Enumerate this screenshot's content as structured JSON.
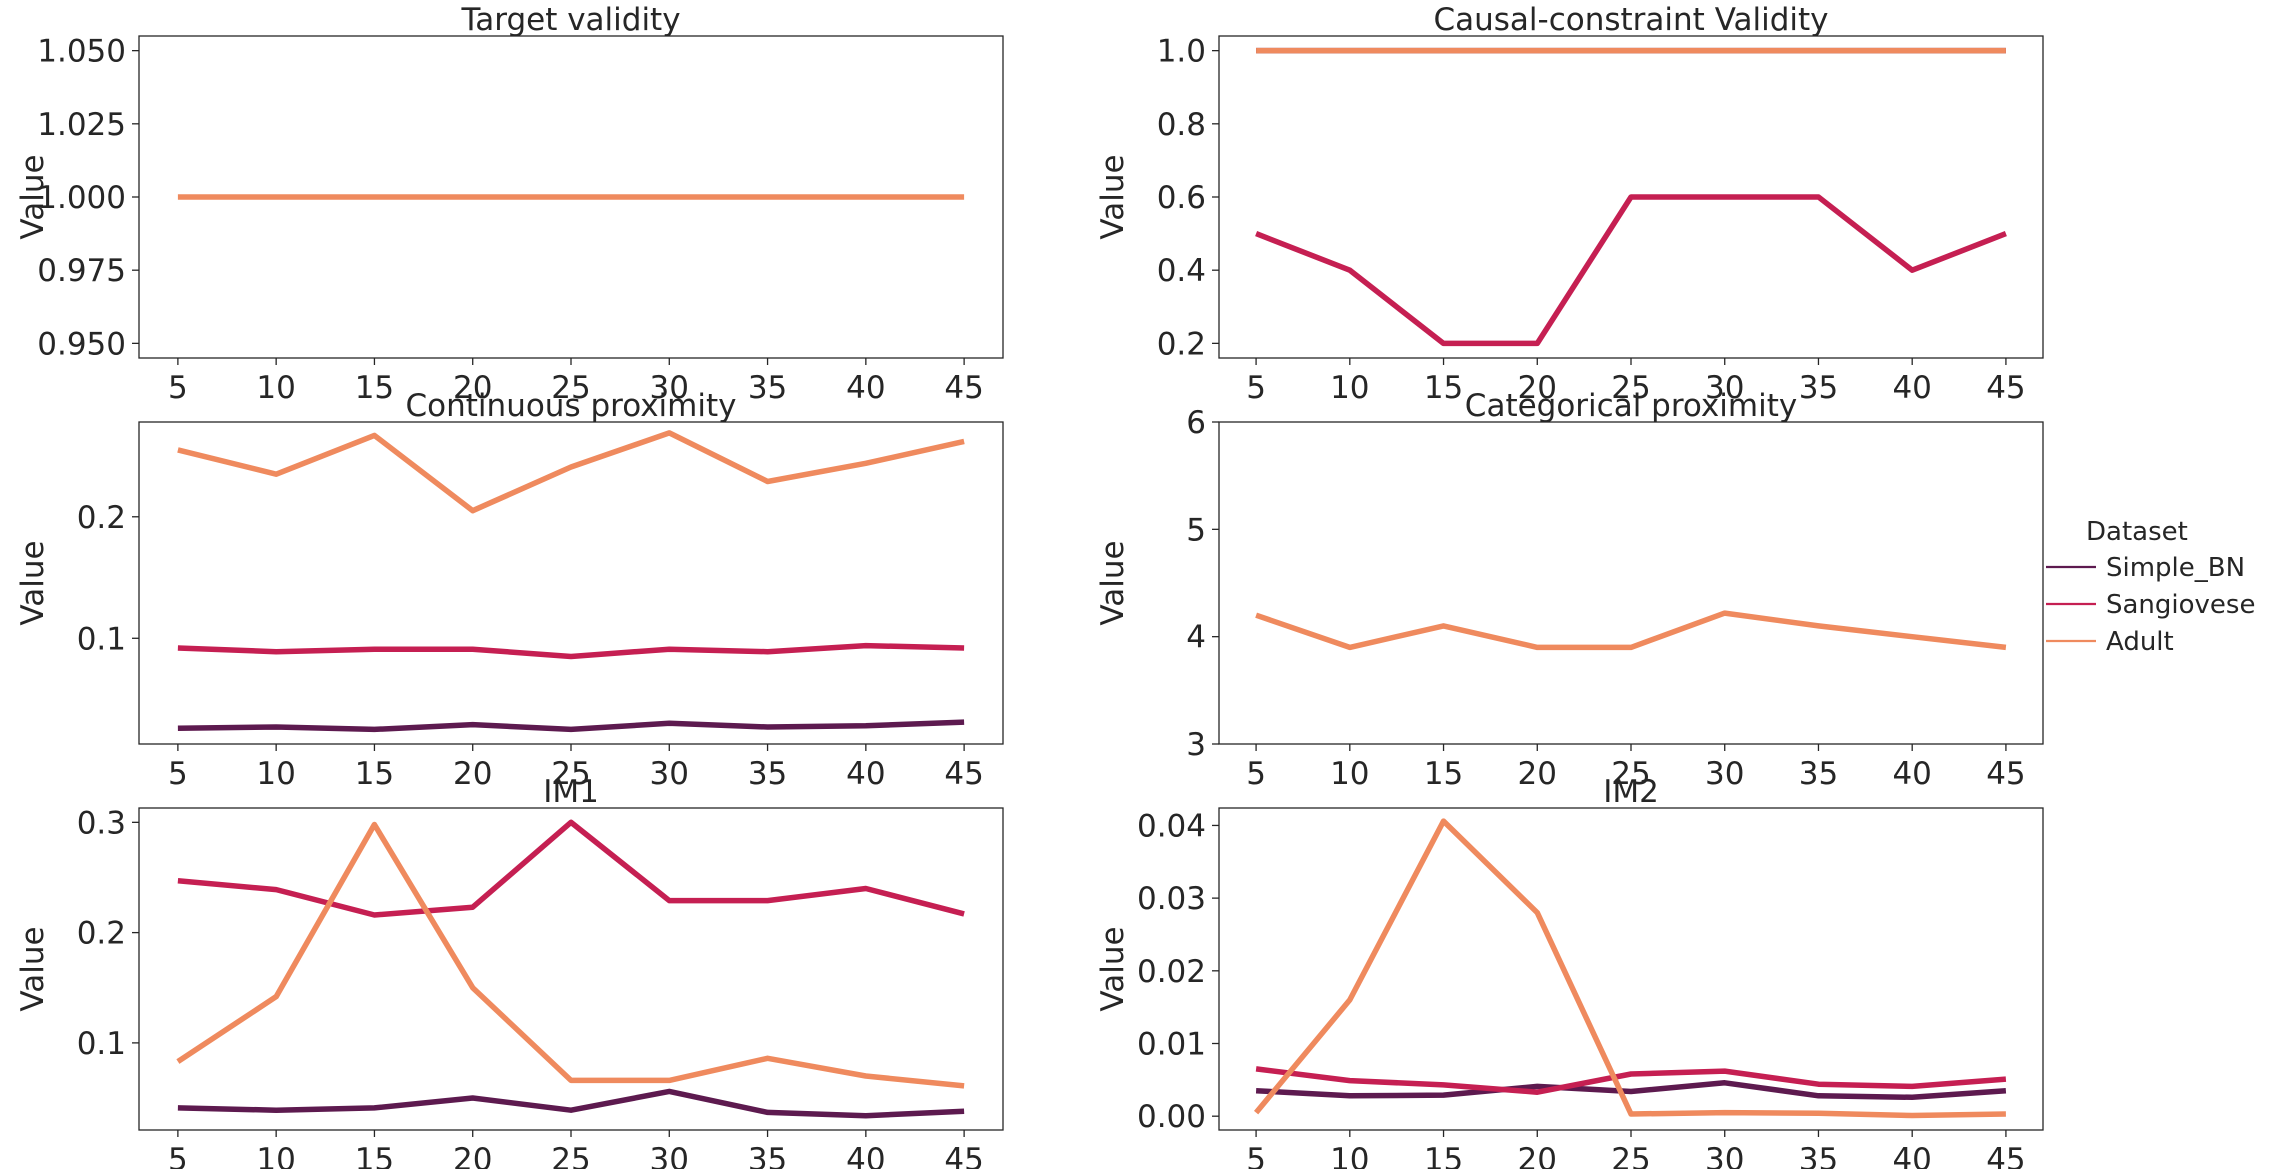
{
  "legend": {
    "title": "Dataset",
    "entries": [
      {
        "name": "Simple_BN",
        "color": "#5d1a4f"
      },
      {
        "name": "Sangiovese",
        "color": "#c51f52"
      },
      {
        "name": "Adult",
        "color": "#ef8a5e"
      }
    ]
  },
  "chart_data": [
    {
      "type": "line",
      "title": "Target validity",
      "ylabel": "Value",
      "x": [
        5,
        10,
        15,
        20,
        25,
        30,
        35,
        40,
        45
      ],
      "xticks": [
        5,
        10,
        15,
        20,
        25,
        30,
        35,
        40,
        45
      ],
      "ylim": [
        0.945,
        1.055
      ],
      "yticks": [
        0.95,
        0.975,
        1.0,
        1.025,
        1.05
      ],
      "ytick_labels": [
        "0.950",
        "0.975",
        "1.000",
        "1.025",
        "1.050"
      ],
      "series": [
        {
          "name": "Adult",
          "color": "#ef8a5e",
          "values": [
            1.0,
            1.0,
            1.0,
            1.0,
            1.0,
            1.0,
            1.0,
            1.0,
            1.0
          ]
        }
      ]
    },
    {
      "type": "line",
      "title": "Causal-constraint Validity",
      "ylabel": "Value",
      "x": [
        5,
        10,
        15,
        20,
        25,
        30,
        35,
        40,
        45
      ],
      "xticks": [
        5,
        10,
        15,
        20,
        25,
        30,
        35,
        40,
        45
      ],
      "ylim": [
        0.16,
        1.04
      ],
      "yticks": [
        0.2,
        0.4,
        0.6,
        0.8,
        1.0
      ],
      "ytick_labels": [
        "0.2",
        "0.4",
        "0.6",
        "0.8",
        "1.0"
      ],
      "series": [
        {
          "name": "Simple_BN",
          "color": "#5d1a4f",
          "values": [
            1.0,
            1.0,
            1.0,
            1.0,
            1.0,
            1.0,
            1.0,
            1.0,
            1.0
          ]
        },
        {
          "name": "Sangiovese",
          "color": "#c51f52",
          "values": [
            0.5,
            0.4,
            0.2,
            0.2,
            0.6,
            0.6,
            0.6,
            0.4,
            0.5
          ]
        },
        {
          "name": "Adult",
          "color": "#ef8a5e",
          "values": [
            1.0,
            1.0,
            1.0,
            1.0,
            1.0,
            1.0,
            1.0,
            1.0,
            1.0
          ]
        }
      ]
    },
    {
      "type": "line",
      "title": "Continuous proximity",
      "ylabel": "Value",
      "x": [
        5,
        10,
        15,
        20,
        25,
        30,
        35,
        40,
        45
      ],
      "xticks": [
        5,
        10,
        15,
        20,
        25,
        30,
        35,
        40,
        45
      ],
      "ylim": [
        0.013,
        0.278
      ],
      "yticks": [
        0.1,
        0.2
      ],
      "ytick_labels": [
        "0.1",
        "0.2"
      ],
      "series": [
        {
          "name": "Simple_BN",
          "color": "#5d1a4f",
          "values": [
            0.026,
            0.027,
            0.025,
            0.029,
            0.025,
            0.03,
            0.027,
            0.028,
            0.031
          ]
        },
        {
          "name": "Sangiovese",
          "color": "#c51f52",
          "values": [
            0.092,
            0.089,
            0.091,
            0.091,
            0.085,
            0.091,
            0.089,
            0.094,
            0.092
          ]
        },
        {
          "name": "Adult",
          "color": "#ef8a5e",
          "values": [
            0.255,
            0.235,
            0.267,
            0.205,
            0.241,
            0.269,
            0.229,
            0.244,
            0.262
          ]
        }
      ]
    },
    {
      "type": "line",
      "title": "Categorical proximity",
      "ylabel": "Value",
      "x": [
        5,
        10,
        15,
        20,
        25,
        30,
        35,
        40,
        45
      ],
      "xticks": [
        5,
        10,
        15,
        20,
        25,
        30,
        35,
        40,
        45
      ],
      "ylim": [
        3,
        6
      ],
      "yticks": [
        3,
        4,
        5,
        6
      ],
      "ytick_labels": [
        "3",
        "4",
        "5",
        "6"
      ],
      "series": [
        {
          "name": "Adult",
          "color": "#ef8a5e",
          "values": [
            4.2,
            3.9,
            4.1,
            3.9,
            3.9,
            4.22,
            4.1,
            4.0,
            3.9
          ]
        }
      ]
    },
    {
      "type": "line",
      "title": "IM1",
      "ylabel": "Value",
      "x": [
        5,
        10,
        15,
        20,
        25,
        30,
        35,
        40,
        45
      ],
      "xticks": [
        5,
        10,
        15,
        20,
        25,
        30,
        35,
        40,
        45
      ],
      "ylim": [
        0.021,
        0.313
      ],
      "yticks": [
        0.1,
        0.2,
        0.3
      ],
      "ytick_labels": [
        "0.1",
        "0.2",
        "0.3"
      ],
      "series": [
        {
          "name": "Simple_BN",
          "color": "#5d1a4f",
          "values": [
            0.041,
            0.039,
            0.041,
            0.05,
            0.039,
            0.056,
            0.037,
            0.034,
            0.038
          ]
        },
        {
          "name": "Sangiovese",
          "color": "#c51f52",
          "values": [
            0.247,
            0.239,
            0.216,
            0.223,
            0.3,
            0.229,
            0.229,
            0.24,
            0.217
          ]
        },
        {
          "name": "Adult",
          "color": "#ef8a5e",
          "values": [
            0.083,
            0.142,
            0.298,
            0.15,
            0.066,
            0.066,
            0.086,
            0.07,
            0.061
          ]
        }
      ]
    },
    {
      "type": "line",
      "title": "IM2",
      "ylabel": "Value",
      "x": [
        5,
        10,
        15,
        20,
        25,
        30,
        35,
        40,
        45
      ],
      "xticks": [
        5,
        10,
        15,
        20,
        25,
        30,
        35,
        40,
        45
      ],
      "ylim": [
        -0.0019,
        0.0424
      ],
      "yticks": [
        0.0,
        0.01,
        0.02,
        0.03,
        0.04
      ],
      "ytick_labels": [
        "0.00",
        "0.01",
        "0.02",
        "0.03",
        "0.04"
      ],
      "series": [
        {
          "name": "Simple_BN",
          "color": "#5d1a4f",
          "values": [
            0.0035,
            0.0028,
            0.0029,
            0.0041,
            0.0034,
            0.0046,
            0.0028,
            0.0026,
            0.0035
          ]
        },
        {
          "name": "Sangiovese",
          "color": "#c51f52",
          "values": [
            0.0065,
            0.0049,
            0.0043,
            0.0033,
            0.0058,
            0.0062,
            0.0044,
            0.0041,
            0.0051
          ]
        },
        {
          "name": "Adult",
          "color": "#ef8a5e",
          "values": [
            0.0005,
            0.016,
            0.0406,
            0.028,
            0.0003,
            0.0005,
            0.0004,
            0.0001,
            0.0003
          ]
        }
      ]
    }
  ]
}
